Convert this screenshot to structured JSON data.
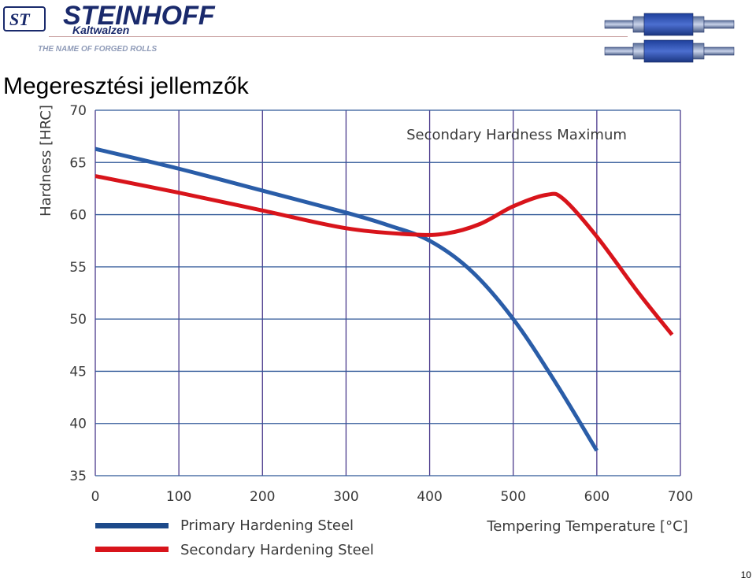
{
  "header": {
    "brand": "STEINHOFF",
    "brand_sub": "Kaltwalzen",
    "logo_mark": "ST",
    "tagline": "THE NAME OF FORGED ROLLS"
  },
  "title": "Megeresztési jellemzők",
  "page_number": "10",
  "colors": {
    "primary_series": "#2a5da8",
    "secondary_series": "#d8141b",
    "grid_horizontal": "#2f5797",
    "grid_vertical": "#4b3a8c",
    "legend_primary": "#1d4a8a"
  },
  "chart_data": {
    "type": "line",
    "ylabel": "Hardness [HRC]",
    "xlabel": "Tempering Temperature [°C]",
    "annotation": "Secondary Hardness Maximum",
    "xlim": [
      0,
      700
    ],
    "ylim": [
      35,
      70
    ],
    "x_ticks": [
      "0",
      "100",
      "200",
      "300",
      "400",
      "500",
      "600",
      "700"
    ],
    "y_ticks": [
      "70",
      "65",
      "60",
      "55",
      "50",
      "45",
      "40",
      "35"
    ],
    "x_tick_values": [
      0,
      100,
      200,
      300,
      400,
      500,
      600,
      700
    ],
    "y_tick_values": [
      70,
      65,
      60,
      55,
      50,
      45,
      40,
      35
    ],
    "grid": true,
    "series": [
      {
        "name": "Primary Hardening Steel",
        "color": "#2a5da8",
        "x": [
          0,
          100,
          200,
          300,
          350,
          400,
          450,
          500,
          550,
          600
        ],
        "y": [
          66.3,
          64.4,
          62.3,
          60.2,
          59.0,
          57.5,
          54.6,
          50.0,
          44.0,
          37.4
        ]
      },
      {
        "name": "Secondary Hardening Steel",
        "color": "#d8141b",
        "x": [
          0,
          100,
          200,
          300,
          380,
          420,
          460,
          500,
          540,
          560,
          600,
          650,
          690
        ],
        "y": [
          63.7,
          62.1,
          60.4,
          58.7,
          58.1,
          58.2,
          59.1,
          60.8,
          61.9,
          61.5,
          57.9,
          52.5,
          48.5
        ]
      }
    ]
  }
}
